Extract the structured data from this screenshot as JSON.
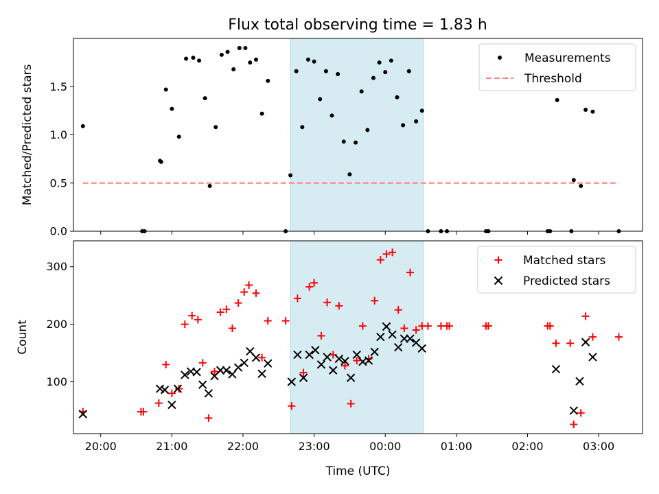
{
  "chart_data": [
    {
      "type": "scatter",
      "title": "Flux total observing time = 1.83 h",
      "xlabel": "",
      "ylabel": "Matched/Predicted stars",
      "xlim": [
        "19:37",
        "03:37"
      ],
      "ylim": [
        0,
        2.0
      ],
      "yticks": [
        "0.0",
        "0.5",
        "1.0",
        "1.5"
      ],
      "grid": false,
      "legend_position": "top-right",
      "shaded_region": {
        "x": [
          "22:40",
          "00:32"
        ],
        "color": "#add8e6"
      },
      "series": [
        {
          "name": "Measurements",
          "marker": "dot",
          "color": "#000000",
          "points": [
            [
              "19:45",
              1.09
            ],
            [
              "20:35",
              0.0
            ],
            [
              "20:37",
              0.0
            ],
            [
              "20:50",
              0.73
            ],
            [
              "20:51",
              0.72
            ],
            [
              "20:55",
              1.47
            ],
            [
              "21:00",
              1.27
            ],
            [
              "21:06",
              0.98
            ],
            [
              "21:12",
              1.79
            ],
            [
              "21:18",
              1.8
            ],
            [
              "21:23",
              1.77
            ],
            [
              "21:28",
              1.38
            ],
            [
              "21:32",
              0.47
            ],
            [
              "21:37",
              1.08
            ],
            [
              "21:42",
              1.83
            ],
            [
              "21:47",
              1.86
            ],
            [
              "21:52",
              1.68
            ],
            [
              "21:57",
              1.9
            ],
            [
              "22:02",
              1.9
            ],
            [
              "22:06",
              1.75
            ],
            [
              "22:11",
              1.78
            ],
            [
              "22:16",
              1.22
            ],
            [
              "22:21",
              1.56
            ],
            [
              "22:36",
              0.0
            ],
            [
              "22:40",
              0.58
            ],
            [
              "22:45",
              1.66
            ],
            [
              "22:50",
              1.08
            ],
            [
              "22:55",
              1.78
            ],
            [
              "23:00",
              1.76
            ],
            [
              "23:05",
              1.37
            ],
            [
              "23:10",
              1.66
            ],
            [
              "23:15",
              1.2
            ],
            [
              "23:20",
              1.63
            ],
            [
              "23:25",
              0.93
            ],
            [
              "23:30",
              0.59
            ],
            [
              "23:35",
              0.92
            ],
            [
              "23:40",
              1.45
            ],
            [
              "23:45",
              1.05
            ],
            [
              "23:50",
              1.59
            ],
            [
              "23:55",
              1.75
            ],
            [
              "00:00",
              1.65
            ],
            [
              "00:05",
              1.77
            ],
            [
              "00:10",
              1.39
            ],
            [
              "00:15",
              1.1
            ],
            [
              "00:20",
              1.66
            ],
            [
              "00:26",
              1.14
            ],
            [
              "00:31",
              1.25
            ],
            [
              "00:36",
              0.0
            ],
            [
              "00:47",
              0.0
            ],
            [
              "00:52",
              0.0
            ],
            [
              "01:25",
              0.0
            ],
            [
              "01:27",
              0.0
            ],
            [
              "02:17",
              0.0
            ],
            [
              "02:19",
              0.0
            ],
            [
              "02:25",
              1.36
            ],
            [
              "02:37",
              0.0
            ],
            [
              "02:39",
              0.53
            ],
            [
              "02:45",
              0.47
            ],
            [
              "02:49",
              1.26
            ],
            [
              "02:55",
              1.24
            ],
            [
              "03:17",
              0.0
            ]
          ]
        },
        {
          "name": "Threshold",
          "line": "dashed",
          "color": "#ff7f7f",
          "points": [
            [
              "19:45",
              0.5
            ],
            [
              "03:17",
              0.5
            ]
          ]
        }
      ]
    },
    {
      "type": "scatter",
      "title": "",
      "xlabel": "Time (UTC)",
      "ylabel": "Count",
      "xlim": [
        "19:37",
        "03:37"
      ],
      "ylim": [
        10,
        345
      ],
      "xticks": [
        "20:00",
        "21:00",
        "22:00",
        "23:00",
        "00:00",
        "01:00",
        "02:00",
        "03:00"
      ],
      "yticks": [
        "100",
        "200",
        "300"
      ],
      "grid": false,
      "legend_position": "top-right",
      "shaded_region": {
        "x": [
          "22:40",
          "00:32"
        ],
        "color": "#add8e6"
      },
      "series": [
        {
          "name": "Matched stars",
          "marker": "plus",
          "color": "#ff0000",
          "points": [
            [
              "19:45",
              48
            ],
            [
              "20:34",
              48
            ],
            [
              "20:36",
              48
            ],
            [
              "20:49",
              63
            ],
            [
              "20:55",
              130
            ],
            [
              "21:00",
              80
            ],
            [
              "21:06",
              88
            ],
            [
              "21:11",
              200
            ],
            [
              "21:17",
              215
            ],
            [
              "21:22",
              208
            ],
            [
              "21:26",
              133
            ],
            [
              "21:31",
              37
            ],
            [
              "21:36",
              118
            ],
            [
              "21:41",
              221
            ],
            [
              "21:46",
              226
            ],
            [
              "21:51",
              193
            ],
            [
              "21:56",
              237
            ],
            [
              "22:01",
              256
            ],
            [
              "22:05",
              268
            ],
            [
              "22:11",
              254
            ],
            [
              "22:16",
              142
            ],
            [
              "22:21",
              206
            ],
            [
              "22:36",
              206
            ],
            [
              "22:41",
              58
            ],
            [
              "22:46",
              245
            ],
            [
              "22:51",
              116
            ],
            [
              "22:56",
              265
            ],
            [
              "23:00",
              272
            ],
            [
              "23:06",
              180
            ],
            [
              "23:11",
              238
            ],
            [
              "23:16",
              147
            ],
            [
              "23:21",
              232
            ],
            [
              "23:26",
              128
            ],
            [
              "23:31",
              62
            ],
            [
              "23:36",
              137
            ],
            [
              "23:41",
              197
            ],
            [
              "23:46",
              140
            ],
            [
              "23:51",
              241
            ],
            [
              "23:56",
              312
            ],
            [
              "00:01",
              322
            ],
            [
              "00:06",
              325
            ],
            [
              "00:11",
              225
            ],
            [
              "00:16",
              193
            ],
            [
              "00:21",
              290
            ],
            [
              "00:26",
              190
            ],
            [
              "00:31",
              197
            ],
            [
              "00:36",
              197
            ],
            [
              "00:47",
              197
            ],
            [
              "00:52",
              197
            ],
            [
              "00:54",
              197
            ],
            [
              "01:25",
              197
            ],
            [
              "01:27",
              197
            ],
            [
              "02:17",
              197
            ],
            [
              "02:19",
              197
            ],
            [
              "02:24",
              167
            ],
            [
              "02:36",
              167
            ],
            [
              "02:39",
              26
            ],
            [
              "02:45",
              46
            ],
            [
              "02:49",
              214
            ],
            [
              "02:55",
              178
            ],
            [
              "03:17",
              178
            ]
          ]
        },
        {
          "name": "Predicted stars",
          "marker": "x",
          "color": "#000000",
          "points": [
            [
              "19:45",
              44
            ],
            [
              "20:50",
              88
            ],
            [
              "20:54",
              86
            ],
            [
              "21:00",
              60
            ],
            [
              "21:05",
              88
            ],
            [
              "21:11",
              112
            ],
            [
              "21:16",
              118
            ],
            [
              "21:21",
              117
            ],
            [
              "21:26",
              95
            ],
            [
              "21:31",
              80
            ],
            [
              "21:36",
              110
            ],
            [
              "21:41",
              120
            ],
            [
              "21:46",
              120
            ],
            [
              "21:51",
              113
            ],
            [
              "21:56",
              125
            ],
            [
              "22:01",
              133
            ],
            [
              "22:06",
              153
            ],
            [
              "22:11",
              142
            ],
            [
              "22:16",
              114
            ],
            [
              "22:21",
              132
            ],
            [
              "22:41",
              100
            ],
            [
              "22:46",
              147
            ],
            [
              "22:51",
              107
            ],
            [
              "22:56",
              147
            ],
            [
              "23:01",
              155
            ],
            [
              "23:06",
              130
            ],
            [
              "23:11",
              143
            ],
            [
              "23:16",
              120
            ],
            [
              "23:21",
              140
            ],
            [
              "23:26",
              136
            ],
            [
              "23:31",
              107
            ],
            [
              "23:36",
              147
            ],
            [
              "23:41",
              135
            ],
            [
              "23:46",
              137
            ],
            [
              "23:51",
              152
            ],
            [
              "23:56",
              178
            ],
            [
              "00:01",
              196
            ],
            [
              "00:06",
              182
            ],
            [
              "00:11",
              160
            ],
            [
              "00:16",
              175
            ],
            [
              "00:21",
              175
            ],
            [
              "00:26",
              168
            ],
            [
              "00:31",
              158
            ],
            [
              "02:24",
              122
            ],
            [
              "02:39",
              50
            ],
            [
              "02:44",
              101
            ],
            [
              "02:49",
              169
            ],
            [
              "02:55",
              143
            ]
          ]
        }
      ]
    }
  ]
}
